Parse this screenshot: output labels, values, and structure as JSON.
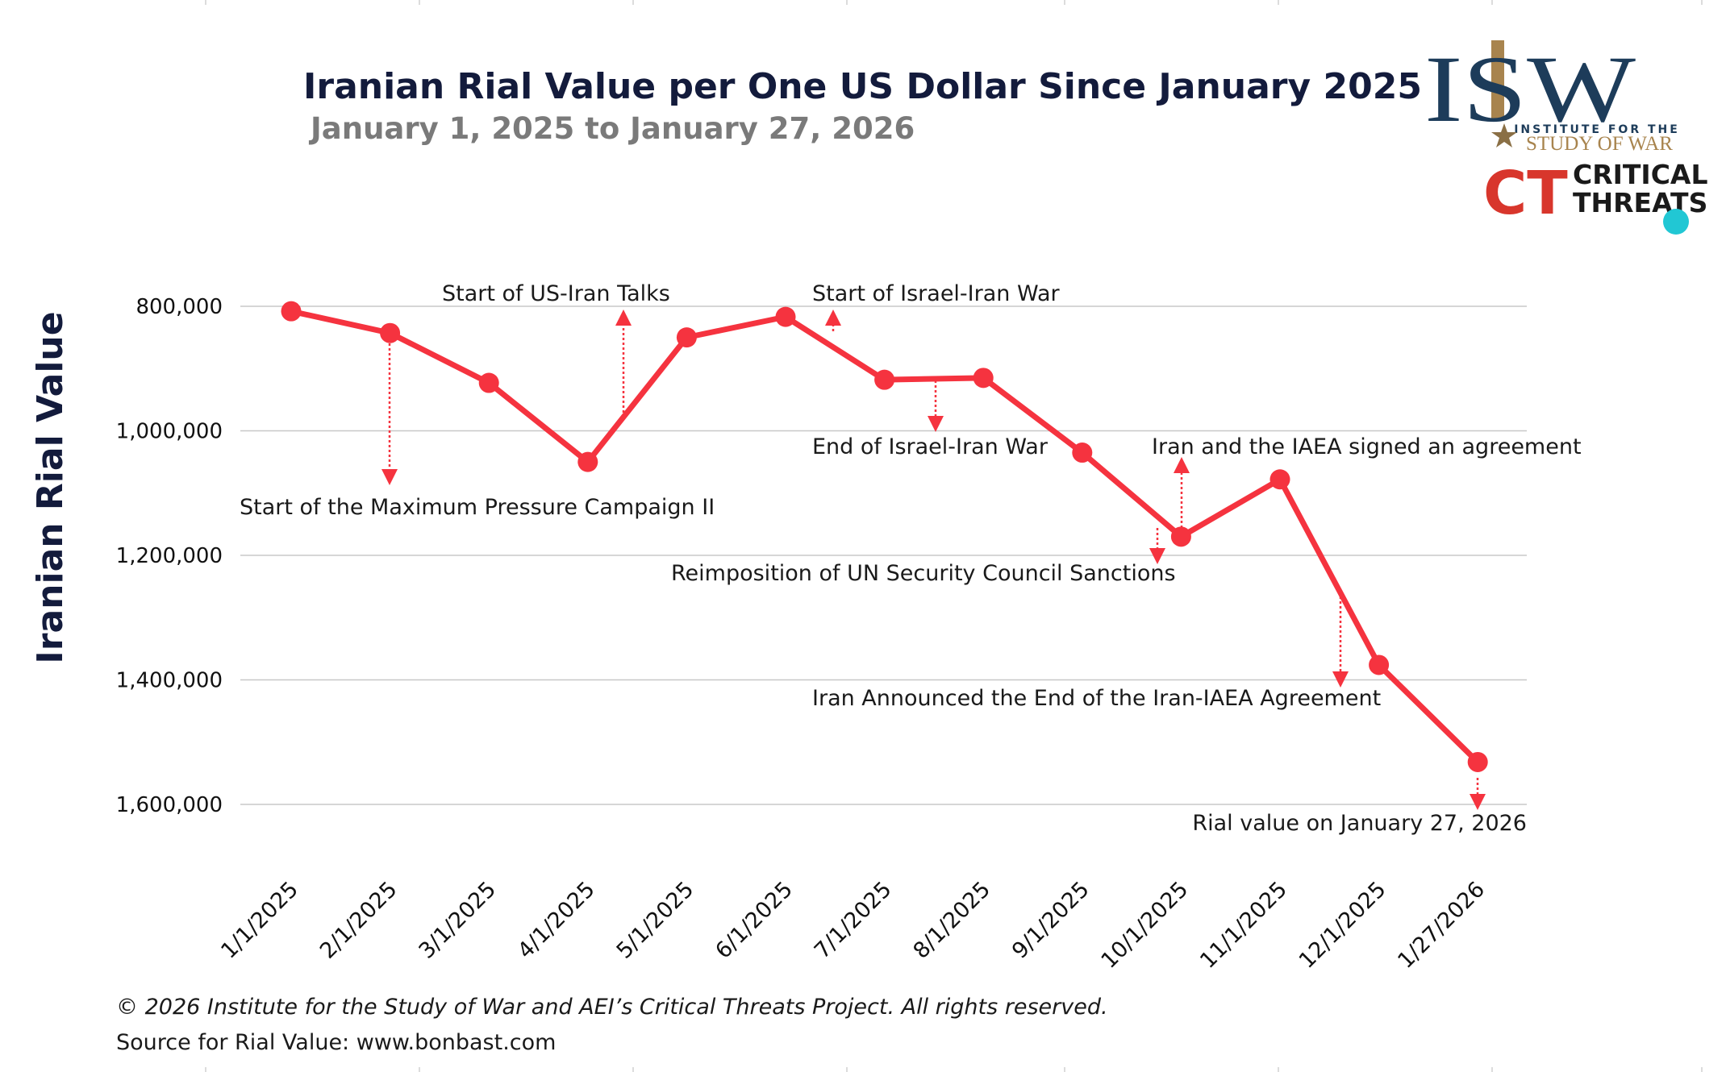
{
  "colors": {
    "series": "#f5333f",
    "title": "#131b3c",
    "subtitle": "#7a7a7a",
    "grid": "#c8c8c8",
    "isw_navy": "#1d3c5a",
    "isw_gold": "#a8844e",
    "ct_red": "#d8362c",
    "ct_teal": "#21c7d4"
  },
  "logo": {
    "isw_letters": "ISW",
    "isw_line1": "INSTITUTE FOR THE",
    "isw_line2": "STUDY OF WAR",
    "ct_letters": "CT",
    "ct_line1": "CRITICAL",
    "ct_line2": "THREATS"
  },
  "footer": {
    "copyright": "© 2026 Institute for the Study of War and AEI’s Critical Threats Project. All rights reserved.",
    "source": "Source for Rial Value: www.bonbast.com"
  },
  "chart_data": {
    "type": "line",
    "title": "Iranian Rial Value per One US Dollar Since January 2025",
    "subtitle": "January 1, 2025 to January 27, 2026",
    "xlabel": "",
    "ylabel": "Iranian Rial Value",
    "y_inverted": true,
    "ylim": [
      800000,
      1600000
    ],
    "yticks": [
      800000,
      1000000,
      1200000,
      1400000,
      1600000
    ],
    "ytick_labels": [
      "800,000",
      "1,000,000",
      "1,200,000",
      "1,400,000",
      "1,600,000"
    ],
    "grid": true,
    "legend": "none",
    "x": [
      "1/1/2025",
      "2/1/2025",
      "3/1/2025",
      "4/1/2025",
      "5/1/2025",
      "6/1/2025",
      "7/1/2025",
      "8/1/2025",
      "9/1/2025",
      "10/1/2025",
      "11/1/2025",
      "12/1/2025",
      "1/27/2026"
    ],
    "series": [
      {
        "values": [
          808000,
          843000,
          923000,
          1050000,
          850000,
          817000,
          918000,
          915000,
          1035000,
          1170000,
          1078000,
          1376000,
          1532000
        ]
      }
    ],
    "annotations": [
      {
        "text": "Start of the Maximum Pressure Campaign II",
        "at_index": 1.0,
        "dir": "down"
      },
      {
        "text": "Start of US-Iran Talks",
        "at_index": 3.35,
        "dir": "up"
      },
      {
        "text": "Start of Israel-Iran War",
        "at_index": 5.45,
        "dir": "up"
      },
      {
        "text": "End of Israel-Iran War",
        "at_index": 6.55,
        "dir": "down"
      },
      {
        "text": "Iran and the IAEA signed an agreement",
        "at_index": 9.0,
        "dir": "up"
      },
      {
        "text": "Reimposition of UN Security Council Sanctions",
        "at_index": 8.8,
        "dir": "down"
      },
      {
        "text": "Iran Announced the End of the Iran-IAEA Agreement",
        "at_index": 10.6,
        "dir": "down"
      },
      {
        "text": "Rial value on January 27, 2026",
        "at_index": 12.0,
        "dir": "down"
      }
    ]
  }
}
